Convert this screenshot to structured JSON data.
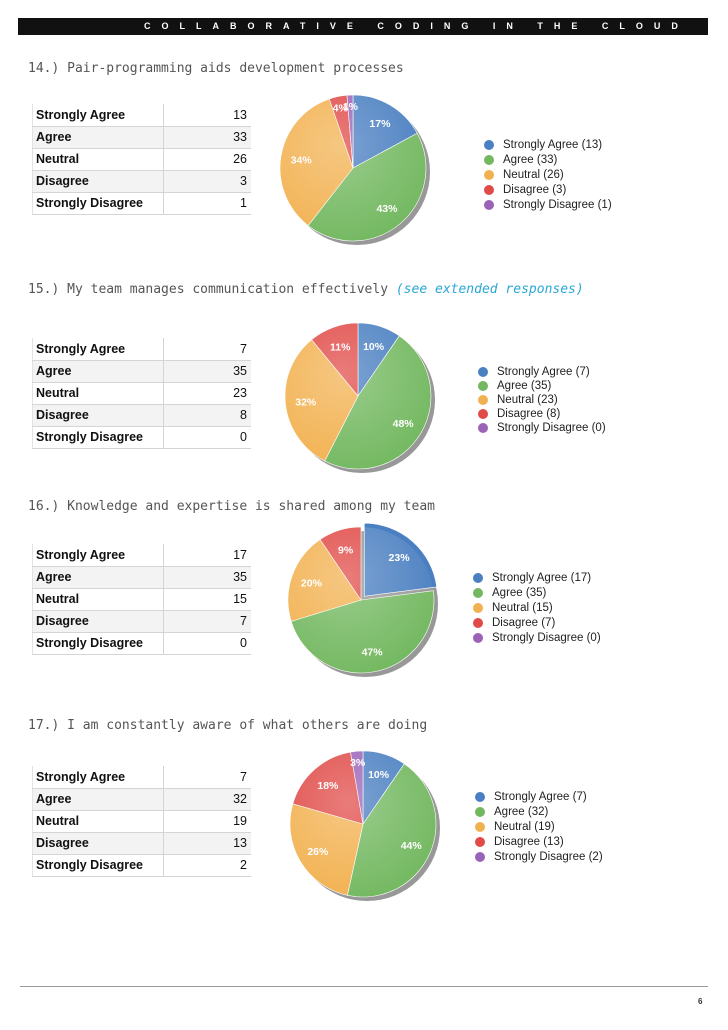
{
  "header": {
    "title": "COLLABORATIVE CODING IN THE CLOUD"
  },
  "footer": {
    "page_number": "6"
  },
  "colors": {
    "strongly_agree": "#4a7fc1",
    "agree": "#73b860",
    "neutral": "#f2b150",
    "disagree": "#e04a47",
    "strongly_disagree": "#9b63b8"
  },
  "questions": [
    {
      "title": "14.) Pair-programming aids development processes",
      "link_text": "",
      "rows": [
        {
          "label": "Strongly Agree",
          "value": "13"
        },
        {
          "label": "Agree",
          "value": "33"
        },
        {
          "label": "Neutral",
          "value": "26"
        },
        {
          "label": "Disagree",
          "value": "3"
        },
        {
          "label": "Strongly Disagree",
          "value": "1"
        }
      ],
      "legend": [
        "Strongly Agree (13)",
        "Agree (33)",
        "Neutral (26)",
        "Disagree (3)",
        "Strongly Disagree (1)"
      ]
    },
    {
      "title": "15.) My team manages communication effectively ",
      "link_text": "(see extended responses)",
      "rows": [
        {
          "label": "Strongly Agree",
          "value": "7"
        },
        {
          "label": "Agree",
          "value": "35"
        },
        {
          "label": "Neutral",
          "value": "23"
        },
        {
          "label": "Disagree",
          "value": "8"
        },
        {
          "label": "Strongly Disagree",
          "value": "0"
        }
      ],
      "legend": [
        "Strongly Agree (7)",
        "Agree (35)",
        "Neutral (23)",
        "Disagree (8)",
        "Strongly Disagree (0)"
      ]
    },
    {
      "title": "16.) Knowledge and expertise is shared among my team",
      "link_text": "",
      "rows": [
        {
          "label": "Strongly Agree",
          "value": "17"
        },
        {
          "label": "Agree",
          "value": "35"
        },
        {
          "label": "Neutral",
          "value": "15"
        },
        {
          "label": "Disagree",
          "value": "7"
        },
        {
          "label": "Strongly Disagree",
          "value": "0"
        }
      ],
      "legend": [
        "Strongly Agree (17)",
        "Agree (35)",
        "Neutral (15)",
        "Disagree (7)",
        "Strongly Disagree (0)"
      ]
    },
    {
      "title": "17.) I am constantly aware of what others are doing",
      "link_text": "",
      "rows": [
        {
          "label": "Strongly Agree",
          "value": "7"
        },
        {
          "label": "Agree",
          "value": "32"
        },
        {
          "label": "Neutral",
          "value": "19"
        },
        {
          "label": "Disagree",
          "value": "13"
        },
        {
          "label": "Strongly Disagree",
          "value": "2"
        }
      ],
      "legend": [
        "Strongly Agree (7)",
        "Agree (32)",
        "Neutral (19)",
        "Disagree (13)",
        "Strongly Disagree (2)"
      ]
    }
  ],
  "chart_data": [
    {
      "type": "pie",
      "categories": [
        "Strongly Agree",
        "Agree",
        "Neutral",
        "Disagree",
        "Strongly Disagree"
      ],
      "values": [
        13,
        33,
        26,
        3,
        1
      ],
      "slice_labels": [
        "17%",
        "43%",
        "34%",
        "4%",
        "1%"
      ],
      "legend_position": "right"
    },
    {
      "type": "pie",
      "categories": [
        "Strongly Agree",
        "Agree",
        "Neutral",
        "Disagree",
        "Strongly Disagree"
      ],
      "values": [
        7,
        35,
        23,
        8,
        0
      ],
      "slice_labels": [
        "10%",
        "48%",
        "32%",
        "11%",
        ""
      ],
      "legend_position": "right"
    },
    {
      "type": "pie",
      "categories": [
        "Strongly Agree",
        "Agree",
        "Neutral",
        "Disagree",
        "Strongly Disagree"
      ],
      "values": [
        17,
        35,
        15,
        7,
        0
      ],
      "slice_labels": [
        "23%",
        "47%",
        "20%",
        "9%",
        ""
      ],
      "exploded": "Strongly Agree",
      "legend_position": "right"
    },
    {
      "type": "pie",
      "categories": [
        "Strongly Agree",
        "Agree",
        "Neutral",
        "Disagree",
        "Strongly Disagree"
      ],
      "values": [
        7,
        32,
        19,
        13,
        2
      ],
      "slice_labels": [
        "10%",
        "44%",
        "26%",
        "18%",
        "3%"
      ],
      "legend_position": "right"
    }
  ]
}
